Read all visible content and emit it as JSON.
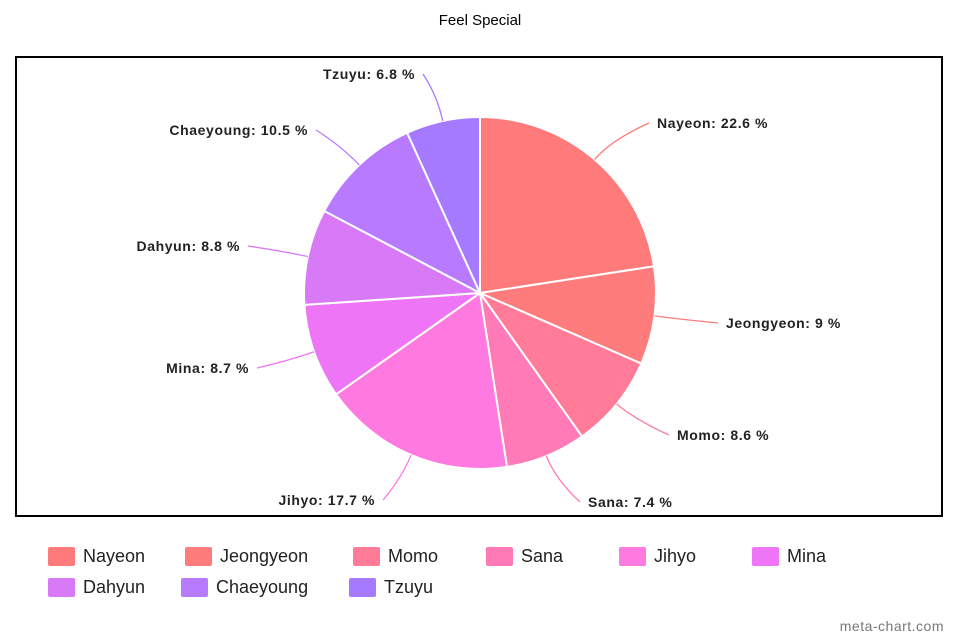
{
  "chart_data": {
    "type": "pie",
    "title": "Feel Special",
    "slices": [
      {
        "label": "Nayeon",
        "value": 22.6,
        "display": "Nayeon: 22.6 %",
        "color": "#ff7a7a"
      },
      {
        "label": "Jeongyeon",
        "value": 9,
        "display": "Jeongyeon: 9 %",
        "color": "#ff7c7c"
      },
      {
        "label": "Momo",
        "value": 8.6,
        "display": "Momo: 8.6 %",
        "color": "#ff7b98"
      },
      {
        "label": "Sana",
        "value": 7.4,
        "display": "Sana: 7.4 %",
        "color": "#ff7ab6"
      },
      {
        "label": "Jihyo",
        "value": 17.7,
        "display": "Jihyo: 17.7 %",
        "color": "#ff7ae0"
      },
      {
        "label": "Mina",
        "value": 8.7,
        "display": "Mina: 8.7 %",
        "color": "#ee76f6"
      },
      {
        "label": "Dahyun",
        "value": 8.8,
        "display": "Dahyun: 8.8 %",
        "color": "#d87af6"
      },
      {
        "label": "Chaeyoung",
        "value": 10.5,
        "display": "Chaeyoung: 10.5 %",
        "color": "#b87aff"
      },
      {
        "label": "Tzuyu",
        "value": 6.8,
        "display": "Tzuyu: 6.8 %",
        "color": "#a57aff"
      }
    ],
    "legend_placement": "bottom"
  },
  "watermark": "meta-chart.com"
}
